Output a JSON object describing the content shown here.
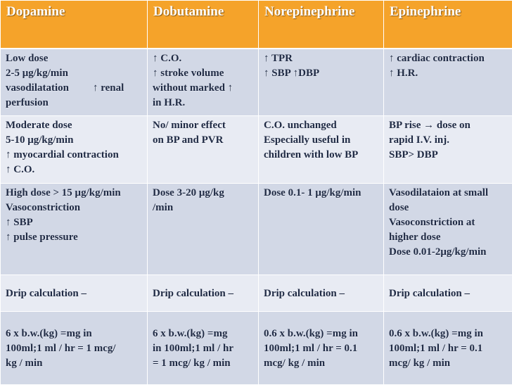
{
  "colors": {
    "header": "#f5a32a",
    "row_dark": "#d2d8e6",
    "row_light": "#e8ebf3",
    "text": "#1f2a44"
  },
  "headers": [
    "Dopamine",
    "Dobutamine",
    "Norepinephrine",
    "Epinephrine"
  ],
  "rows": [
    {
      "cells": [
        [
          "Low dose",
          "2-5 μg/kg/min",
          "vasodilatation",
          "perfusion"
        ],
        [
          "↑ C.O.",
          "↑ stroke volume",
          "without marked ↑",
          "in H.R."
        ],
        [
          "↑ TPR",
          "↑  SBP ↑DBP"
        ],
        [
          "↑ cardiac contraction",
          "↑ H.R."
        ]
      ],
      "extra": "↑ renal"
    },
    {
      "cells": [
        [
          "Moderate dose",
          " 5-10 μg/kg/min",
          "↑ myocardial contraction",
          "↑ C.O."
        ],
        [
          "No/ minor effect",
          "on BP and PVR"
        ],
        [
          "C.O. unchanged",
          "Especially useful in",
          "children with low BP"
        ],
        [
          "BP rise → dose on",
          "rapid I.V. inj.",
          "SBP> DBP"
        ]
      ]
    },
    {
      "cells": [
        [
          "High dose > 15 μg/kg/min",
          "Vasoconstriction",
          "↑ SBP",
          "↑ pulse pressure"
        ],
        [
          "Dose 3-20 μg/kg",
          "/min"
        ],
        [
          "Dose 0.1- 1 μg/kg/min"
        ],
        [
          "Vasodilataion at small",
          "dose",
          "Vasoconstriction at",
          "higher dose",
          "Dose 0.01-2μg/kg/min"
        ]
      ]
    },
    {
      "cells": [
        [
          "Drip calculation –"
        ],
        [
          "Drip calculation –"
        ],
        [
          "Drip calculation –"
        ],
        [
          "Drip calculation –"
        ]
      ]
    },
    {
      "cells": [
        [
          "6 x b.w.(kg) =mg in",
          "100ml;1 ml / hr = 1 mcg/",
          "kg / min"
        ],
        [
          "6 x b.w.(kg) =mg",
          "in 100ml;1 ml / hr",
          "= 1 mcg/ kg / min"
        ],
        [
          "0.6 x b.w.(kg) =mg in",
          "100ml;1 ml / hr = 0.1",
          "mcg/ kg / min"
        ],
        [
          "0.6 x b.w.(kg) =mg in",
          "100ml;1 ml / hr = 0.1",
          "mcg/ kg / min"
        ]
      ]
    }
  ]
}
